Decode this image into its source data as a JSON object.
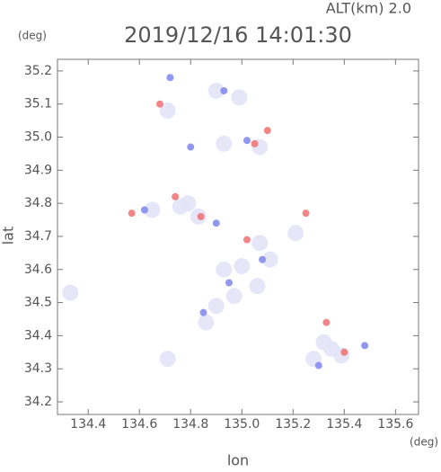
{
  "chart_data": {
    "type": "scatter",
    "title": "2019/12/16 14:01:30",
    "subtitle": "ALT(km) 2.0",
    "x_label": "lon",
    "y_label": "lat",
    "x_unit": "(deg)",
    "y_unit": "(deg)",
    "xlim": [
      134.28,
      135.69
    ],
    "ylim": [
      34.162,
      35.235
    ],
    "xticks": [
      134.4,
      134.6,
      134.8,
      {
        "value": 135.0,
        "label": "135.0"
      },
      135.2,
      135.4,
      135.6
    ],
    "yticks": [
      34.2,
      34.3,
      34.4,
      34.5,
      34.6,
      34.7,
      34.8,
      34.9,
      {
        "value": 35.0,
        "label": "35.0"
      },
      35.1,
      35.2
    ],
    "series": [
      {
        "color": "#e2e3f6",
        "x": [
          134.71,
          134.9,
          134.99,
          135.07,
          134.93,
          134.76,
          134.83,
          134.65,
          135.07,
          135.11,
          135.0,
          134.93,
          135.21,
          134.97,
          134.9,
          134.86,
          135.06,
          135.32,
          135.39,
          135.28,
          134.33,
          134.71,
          135.35,
          134.79
        ],
        "y": [
          35.08,
          35.14,
          35.12,
          34.97,
          34.98,
          34.79,
          34.76,
          34.78,
          34.68,
          34.63,
          34.61,
          34.6,
          34.71,
          34.52,
          34.49,
          34.44,
          34.55,
          34.38,
          34.34,
          34.33,
          34.53,
          34.33,
          34.36,
          34.8
        ]
      },
      {
        "color": "#f07070",
        "x": [
          134.68,
          135.1,
          135.05,
          134.74,
          134.84,
          135.25,
          135.33,
          135.4,
          135.02,
          134.57
        ],
        "y": [
          35.1,
          35.02,
          34.98,
          34.82,
          34.76,
          34.77,
          34.44,
          34.35,
          34.69,
          34.77
        ]
      },
      {
        "color": "#7f86ee",
        "x": [
          134.72,
          134.93,
          135.02,
          134.8,
          134.62,
          134.9,
          135.08,
          135.48,
          135.3,
          134.85,
          134.95
        ],
        "y": [
          35.18,
          35.14,
          34.99,
          34.97,
          34.78,
          34.74,
          34.63,
          34.37,
          34.31,
          34.47,
          34.56
        ]
      }
    ]
  }
}
